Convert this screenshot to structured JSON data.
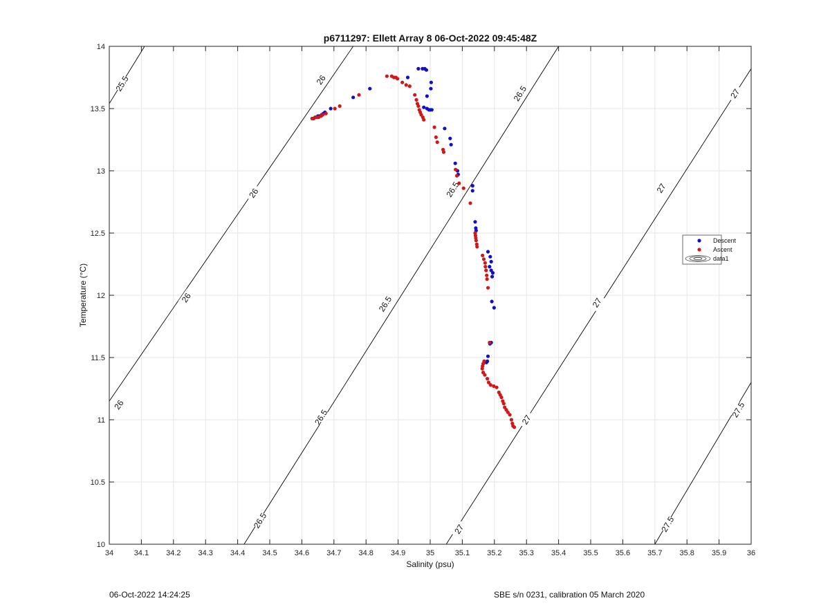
{
  "footer": {
    "timestamp": "06-Oct-2022 14:24:25",
    "calibration": "SBE s/n 0231, calibration 05 March 2020"
  },
  "colors": {
    "descent": "#1010c8",
    "ascent": "#d01818",
    "grid": "#e6e6e6",
    "contour": "#000000"
  },
  "chart_data": {
    "type": "scatter",
    "title": "p6711297: Ellett Array 8 06-Oct-2022 09:45:48Z",
    "xlabel": "Salinity (psu)",
    "ylabel": "Temperature (°C)",
    "xlim": [
      34,
      36
    ],
    "ylim": [
      10,
      14
    ],
    "xticks": [
      "34",
      "34.1",
      "34.2",
      "34.3",
      "34.4",
      "34.5",
      "34.6",
      "34.7",
      "34.8",
      "34.9",
      "35",
      "35.1",
      "35.2",
      "35.3",
      "35.4",
      "35.5",
      "35.6",
      "35.7",
      "35.8",
      "35.9",
      "36"
    ],
    "yticks": [
      "10",
      "10.5",
      "11",
      "11.5",
      "12",
      "12.5",
      "13",
      "13.5",
      "14"
    ],
    "grid": true,
    "legend_position": "right",
    "legend": [
      "Descent",
      "Ascent",
      "data1"
    ],
    "series": [
      {
        "name": "Descent",
        "marker": "dot",
        "points": [
          [
            34.643,
            13.43
          ],
          [
            34.65,
            13.44
          ],
          [
            34.655,
            13.44
          ],
          [
            34.662,
            13.45
          ],
          [
            34.667,
            13.46
          ],
          [
            34.672,
            13.47
          ],
          [
            34.69,
            13.5
          ],
          [
            34.76,
            13.59
          ],
          [
            34.812,
            13.66
          ],
          [
            34.93,
            13.75
          ],
          [
            34.963,
            13.82
          ],
          [
            34.976,
            13.82
          ],
          [
            34.983,
            13.82
          ],
          [
            34.988,
            13.81
          ],
          [
            35.003,
            13.71
          ],
          [
            35.002,
            13.66
          ],
          [
            34.99,
            13.6
          ],
          [
            34.98,
            13.51
          ],
          [
            34.99,
            13.5
          ],
          [
            34.996,
            13.49
          ],
          [
            35.0,
            13.49
          ],
          [
            35.005,
            13.49
          ],
          [
            35.045,
            13.34
          ],
          [
            35.062,
            13.26
          ],
          [
            35.065,
            13.21
          ],
          [
            35.078,
            13.06
          ],
          [
            35.085,
            13.0
          ],
          [
            35.087,
            12.97
          ],
          [
            35.132,
            12.88
          ],
          [
            35.132,
            12.84
          ],
          [
            35.14,
            12.59
          ],
          [
            35.142,
            12.54
          ],
          [
            35.143,
            12.52
          ],
          [
            35.18,
            12.35
          ],
          [
            35.187,
            12.31
          ],
          [
            35.19,
            12.27
          ],
          [
            35.185,
            12.23
          ],
          [
            35.19,
            12.2
          ],
          [
            35.195,
            12.18
          ],
          [
            35.193,
            12.15
          ],
          [
            35.192,
            11.95
          ],
          [
            35.199,
            11.9
          ],
          [
            35.19,
            11.62
          ],
          [
            35.186,
            11.61
          ],
          [
            35.18,
            11.51
          ],
          [
            35.178,
            11.47
          ],
          [
            35.175,
            11.46
          ]
        ]
      },
      {
        "name": "Ascent",
        "marker": "dot",
        "points": [
          [
            34.632,
            13.42
          ],
          [
            34.637,
            13.42
          ],
          [
            34.641,
            13.43
          ],
          [
            34.646,
            13.43
          ],
          [
            34.652,
            13.43
          ],
          [
            34.66,
            13.44
          ],
          [
            34.665,
            13.45
          ],
          [
            34.675,
            13.46
          ],
          [
            34.703,
            13.5
          ],
          [
            34.718,
            13.52
          ],
          [
            34.778,
            13.61
          ],
          [
            34.865,
            13.76
          ],
          [
            34.88,
            13.76
          ],
          [
            34.887,
            13.75
          ],
          [
            34.893,
            13.75
          ],
          [
            34.898,
            13.74
          ],
          [
            34.913,
            13.71
          ],
          [
            34.925,
            13.69
          ],
          [
            34.936,
            13.68
          ],
          [
            34.952,
            13.61
          ],
          [
            34.957,
            13.57
          ],
          [
            34.96,
            13.54
          ],
          [
            34.963,
            13.52
          ],
          [
            34.966,
            13.49
          ],
          [
            34.969,
            13.47
          ],
          [
            34.972,
            13.45
          ],
          [
            34.977,
            13.43
          ],
          [
            34.98,
            13.41
          ],
          [
            35.013,
            13.35
          ],
          [
            35.018,
            13.27
          ],
          [
            35.022,
            13.23
          ],
          [
            35.04,
            13.17
          ],
          [
            35.042,
            13.15
          ],
          [
            35.079,
            13.01
          ],
          [
            35.083,
            12.96
          ],
          [
            35.09,
            12.9
          ],
          [
            35.104,
            12.86
          ],
          [
            35.125,
            12.74
          ],
          [
            35.14,
            12.5
          ],
          [
            35.141,
            12.48
          ],
          [
            35.142,
            12.46
          ],
          [
            35.143,
            12.44
          ],
          [
            35.145,
            12.41
          ],
          [
            35.146,
            12.39
          ],
          [
            35.163,
            12.32
          ],
          [
            35.167,
            12.29
          ],
          [
            35.171,
            12.26
          ],
          [
            35.172,
            12.23
          ],
          [
            35.174,
            12.2
          ],
          [
            35.176,
            12.16
          ],
          [
            35.177,
            12.13
          ],
          [
            35.18,
            12.06
          ],
          [
            35.185,
            11.62
          ],
          [
            35.168,
            11.47
          ],
          [
            35.165,
            11.45
          ],
          [
            35.163,
            11.43
          ],
          [
            35.162,
            11.41
          ],
          [
            35.165,
            11.38
          ],
          [
            35.17,
            11.36
          ],
          [
            35.178,
            11.33
          ],
          [
            35.182,
            11.3
          ],
          [
            35.188,
            11.28
          ],
          [
            35.198,
            11.27
          ],
          [
            35.207,
            11.26
          ],
          [
            35.214,
            11.22
          ],
          [
            35.218,
            11.2
          ],
          [
            35.222,
            11.18
          ],
          [
            35.226,
            11.15
          ],
          [
            35.229,
            11.13
          ],
          [
            35.232,
            11.1
          ],
          [
            35.237,
            11.08
          ],
          [
            35.242,
            11.06
          ],
          [
            35.248,
            11.04
          ],
          [
            35.253,
            11.0
          ],
          [
            35.256,
            10.97
          ],
          [
            35.258,
            10.95
          ],
          [
            35.262,
            10.94
          ]
        ]
      }
    ],
    "contours": [
      {
        "sigma": "25.5",
        "points": [
          [
            34.0,
            13.54
          ],
          [
            34.11,
            14.0
          ]
        ],
        "labels": [
          [
            34.04,
            13.7
          ]
        ]
      },
      {
        "sigma": "26",
        "points": [
          [
            34.0,
            11.15
          ],
          [
            34.76,
            14.0
          ]
        ],
        "labels": [
          [
            34.03,
            11.12
          ],
          [
            34.24,
            11.98
          ],
          [
            34.45,
            12.82
          ],
          [
            34.66,
            13.73
          ]
        ]
      },
      {
        "sigma": "26.5",
        "points": [
          [
            34.42,
            10.0
          ],
          [
            35.4,
            14.0
          ]
        ],
        "labels": [
          [
            34.47,
            10.19
          ],
          [
            34.66,
            11.02
          ],
          [
            34.86,
            11.93
          ],
          [
            35.07,
            12.85
          ],
          [
            35.28,
            13.62
          ]
        ]
      },
      {
        "sigma": "27",
        "points": [
          [
            35.05,
            10.0
          ],
          [
            36.0,
            13.82
          ]
        ],
        "labels": [
          [
            35.09,
            10.12
          ],
          [
            35.3,
            11.0
          ],
          [
            35.52,
            11.94
          ],
          [
            35.72,
            12.86
          ],
          [
            35.95,
            13.62
          ]
        ]
      },
      {
        "sigma": "27.5",
        "points": [
          [
            35.7,
            10.0
          ],
          [
            36.0,
            11.3
          ]
        ],
        "labels": [
          [
            35.74,
            10.16
          ],
          [
            35.96,
            11.08
          ]
        ]
      }
    ]
  }
}
